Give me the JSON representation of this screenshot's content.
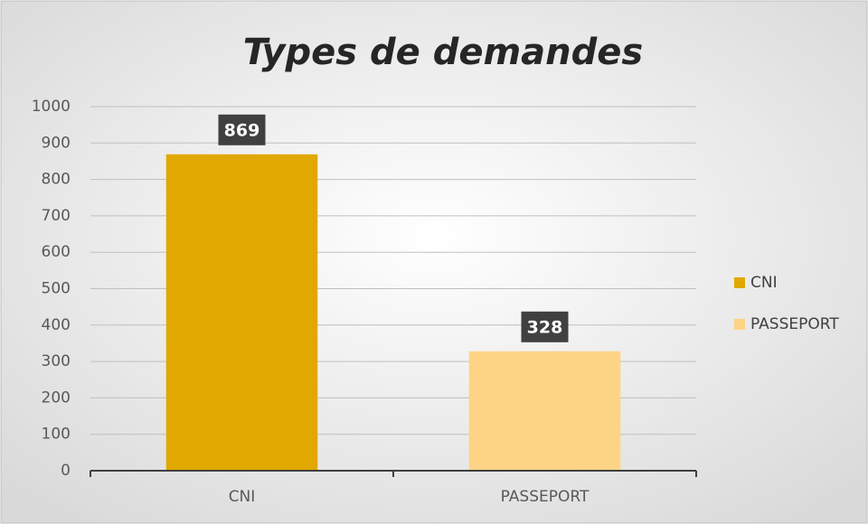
{
  "chart_data": {
    "type": "bar",
    "title": "Types de demandes",
    "categories": [
      "CNI",
      "PASSEPORT"
    ],
    "values": [
      869,
      328
    ],
    "colors": [
      "#e0a800",
      "#fdd386"
    ],
    "ylim": [
      0,
      1000
    ],
    "yticks": [
      0,
      100,
      200,
      300,
      400,
      500,
      600,
      700,
      800,
      900,
      1000
    ],
    "grid": true,
    "legend": "right"
  }
}
